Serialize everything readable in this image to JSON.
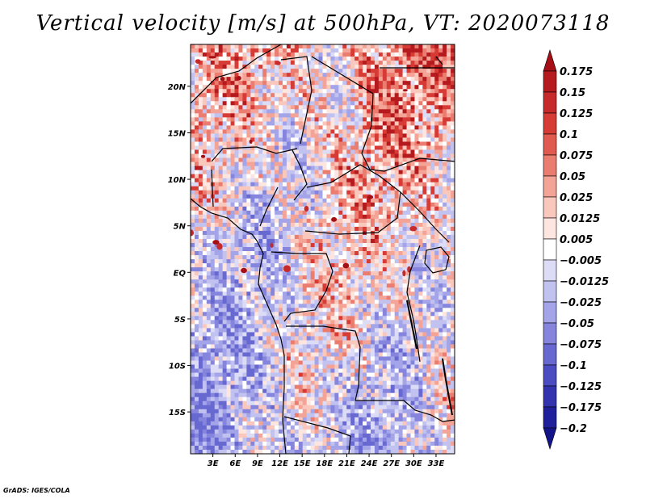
{
  "title": "Vertical velocity [m/s] at 500hPa, VT: 2020073118",
  "credit": "GrADS: IGES/COLA",
  "chart_data": {
    "type": "heatmap",
    "variable": "Vertical velocity",
    "units": "m/s",
    "level": "500hPa",
    "valid_time": "2020073118",
    "lon_range": [
      0,
      35.5
    ],
    "lat_range": [
      -19.5,
      24.5
    ],
    "x_ticks": [
      {
        "value": 3,
        "label": "3E"
      },
      {
        "value": 6,
        "label": "6E"
      },
      {
        "value": 9,
        "label": "9E"
      },
      {
        "value": 12,
        "label": "12E"
      },
      {
        "value": 15,
        "label": "15E"
      },
      {
        "value": 18,
        "label": "18E"
      },
      {
        "value": 21,
        "label": "21E"
      },
      {
        "value": 24,
        "label": "24E"
      },
      {
        "value": 27,
        "label": "27E"
      },
      {
        "value": 30,
        "label": "30E"
      },
      {
        "value": 33,
        "label": "33E"
      }
    ],
    "y_ticks": [
      {
        "value": 20,
        "label": "20N"
      },
      {
        "value": 15,
        "label": "15N"
      },
      {
        "value": 10,
        "label": "10N"
      },
      {
        "value": 5,
        "label": "5N"
      },
      {
        "value": 0,
        "label": "EQ"
      },
      {
        "value": -5,
        "label": "5S"
      },
      {
        "value": -10,
        "label": "10S"
      },
      {
        "value": -15,
        "label": "15S"
      }
    ],
    "colorbar": {
      "labels": [
        "0.175",
        "0.15",
        "0.125",
        "0.1",
        "0.075",
        "0.05",
        "0.025",
        "0.0125",
        "0.005",
        "−0.005",
        "−0.0125",
        "−0.025",
        "−0.05",
        "−0.075",
        "−0.1",
        "−0.125",
        "−0.175",
        "−0.2"
      ],
      "colors": [
        "#a50f15",
        "#b41a1e",
        "#c62a2a",
        "#d63b35",
        "#e05a4f",
        "#ea7d70",
        "#f4a496",
        "#fac7bd",
        "#fde5e0",
        "#ffffff",
        "#dcdcf7",
        "#c2c2f0",
        "#a4a4e8",
        "#8585dd",
        "#6868d1",
        "#4c4cc2",
        "#3333b0",
        "#20209c",
        "#14148a"
      ]
    }
  }
}
